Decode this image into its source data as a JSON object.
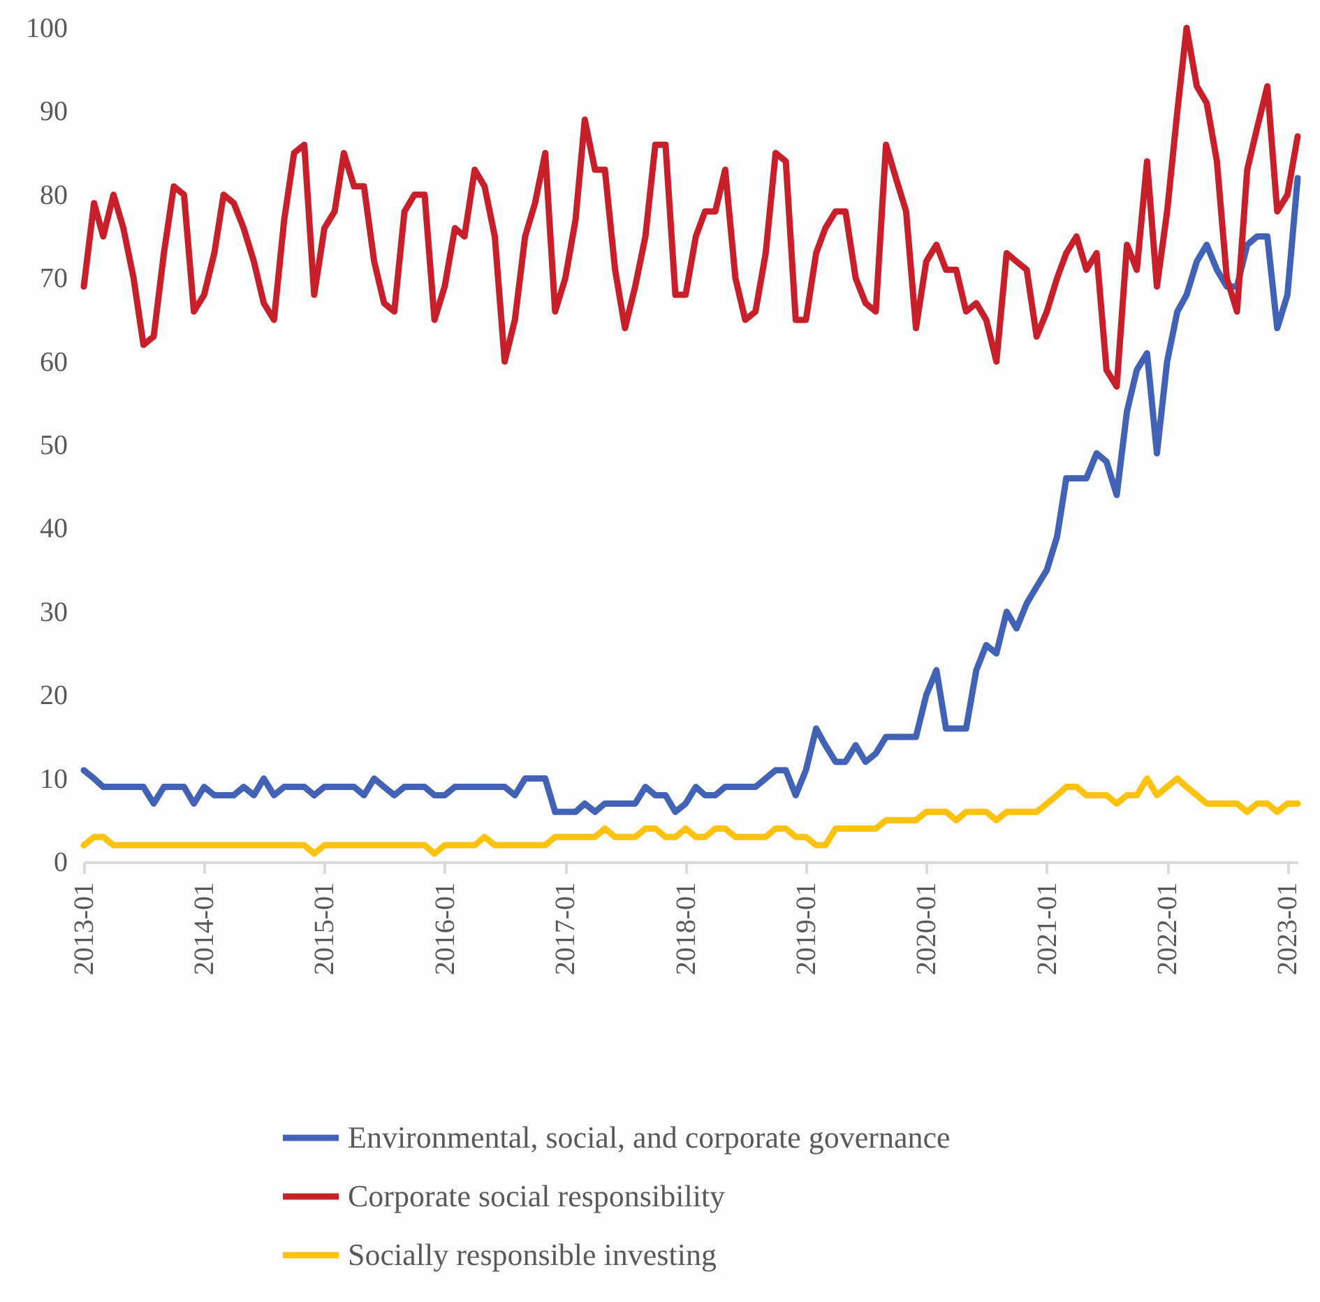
{
  "chart_data": {
    "type": "line",
    "legend": "bottom",
    "ylim": [
      0,
      100
    ],
    "yticks": [
      0,
      10,
      20,
      30,
      40,
      50,
      60,
      70,
      80,
      90,
      100
    ],
    "xlim": [
      "2013-01",
      "2023-02"
    ],
    "xticks": [
      "2013-01",
      "2014-01",
      "2015-01",
      "2016-01",
      "2017-01",
      "2018-01",
      "2019-01",
      "2020-01",
      "2021-01",
      "2022-01",
      "2023-01"
    ],
    "x": [
      "2013-01",
      "2013-02",
      "2013-03",
      "2013-04",
      "2013-05",
      "2013-06",
      "2013-07",
      "2013-08",
      "2013-09",
      "2013-10",
      "2013-11",
      "2013-12",
      "2014-01",
      "2014-02",
      "2014-03",
      "2014-04",
      "2014-05",
      "2014-06",
      "2014-07",
      "2014-08",
      "2014-09",
      "2014-10",
      "2014-11",
      "2014-12",
      "2015-01",
      "2015-02",
      "2015-03",
      "2015-04",
      "2015-05",
      "2015-06",
      "2015-07",
      "2015-08",
      "2015-09",
      "2015-10",
      "2015-11",
      "2015-12",
      "2016-01",
      "2016-02",
      "2016-03",
      "2016-04",
      "2016-05",
      "2016-06",
      "2016-07",
      "2016-08",
      "2016-09",
      "2016-10",
      "2016-11",
      "2016-12",
      "2017-01",
      "2017-02",
      "2017-03",
      "2017-04",
      "2017-05",
      "2017-06",
      "2017-07",
      "2017-08",
      "2017-09",
      "2017-10",
      "2017-11",
      "2017-12",
      "2018-01",
      "2018-02",
      "2018-03",
      "2018-04",
      "2018-05",
      "2018-06",
      "2018-07",
      "2018-08",
      "2018-09",
      "2018-10",
      "2018-11",
      "2018-12",
      "2019-01",
      "2019-02",
      "2019-03",
      "2019-04",
      "2019-05",
      "2019-06",
      "2019-07",
      "2019-08",
      "2019-09",
      "2019-10",
      "2019-11",
      "2019-12",
      "2020-01",
      "2020-02",
      "2020-03",
      "2020-04",
      "2020-05",
      "2020-06",
      "2020-07",
      "2020-08",
      "2020-09",
      "2020-10",
      "2020-11",
      "2020-12",
      "2021-01",
      "2021-02",
      "2021-03",
      "2021-04",
      "2021-05",
      "2021-06",
      "2021-07",
      "2021-08",
      "2021-09",
      "2021-10",
      "2021-11",
      "2021-12",
      "2022-01",
      "2022-02",
      "2022-03",
      "2022-04",
      "2022-05",
      "2022-06",
      "2022-07",
      "2022-08",
      "2022-09",
      "2022-10",
      "2022-11",
      "2022-12",
      "2023-01",
      "2023-02"
    ],
    "series": [
      {
        "name": "Environmental, social, and corporate governance",
        "color": "#4263b5",
        "values": [
          11,
          10,
          9,
          9,
          9,
          9,
          9,
          7,
          9,
          9,
          9,
          7,
          9,
          8,
          8,
          8,
          9,
          8,
          10,
          8,
          9,
          9,
          9,
          8,
          9,
          9,
          9,
          9,
          8,
          10,
          9,
          8,
          9,
          9,
          9,
          8,
          8,
          9,
          9,
          9,
          9,
          9,
          9,
          8,
          10,
          10,
          10,
          6,
          6,
          6,
          7,
          6,
          7,
          7,
          7,
          7,
          9,
          8,
          8,
          6,
          7,
          9,
          8,
          8,
          9,
          9,
          9,
          9,
          10,
          11,
          11,
          8,
          11,
          16,
          14,
          12,
          12,
          14,
          12,
          13,
          15,
          15,
          15,
          15,
          20,
          23,
          16,
          16,
          16,
          23,
          26,
          25,
          30,
          28,
          31,
          33,
          35,
          39,
          46,
          46,
          46,
          49,
          48,
          44,
          54,
          59,
          61,
          49,
          60,
          66,
          68,
          72,
          74,
          71,
          69,
          69,
          74,
          75,
          75,
          64,
          68,
          82
        ]
      },
      {
        "name": "Corporate social responsibility",
        "color": "#c8202a",
        "values": [
          69,
          79,
          75,
          80,
          76,
          70,
          62,
          63,
          73,
          81,
          80,
          66,
          68,
          73,
          80,
          79,
          76,
          72,
          67,
          65,
          77,
          85,
          86,
          68,
          76,
          78,
          85,
          81,
          81,
          72,
          67,
          66,
          78,
          80,
          80,
          65,
          69,
          76,
          75,
          83,
          81,
          75,
          60,
          65,
          75,
          79,
          85,
          66,
          70,
          77,
          89,
          83,
          83,
          71,
          64,
          69,
          75,
          86,
          86,
          68,
          68,
          75,
          78,
          78,
          83,
          70,
          65,
          66,
          73,
          85,
          84,
          65,
          65,
          73,
          76,
          78,
          78,
          70,
          67,
          66,
          86,
          82,
          78,
          64,
          72,
          74,
          71,
          71,
          66,
          67,
          65,
          60,
          73,
          72,
          71,
          63,
          66,
          70,
          73,
          75,
          71,
          73,
          59,
          57,
          74,
          71,
          84,
          69,
          78,
          90,
          100,
          93,
          91,
          84,
          70,
          66,
          83,
          88,
          93,
          78,
          80,
          87
        ]
      },
      {
        "name": "Socially responsible investing",
        "color": "#ffc20e",
        "values": [
          2,
          3,
          3,
          2,
          2,
          2,
          2,
          2,
          2,
          2,
          2,
          2,
          2,
          2,
          2,
          2,
          2,
          2,
          2,
          2,
          2,
          2,
          2,
          1,
          2,
          2,
          2,
          2,
          2,
          2,
          2,
          2,
          2,
          2,
          2,
          1,
          2,
          2,
          2,
          2,
          3,
          2,
          2,
          2,
          2,
          2,
          2,
          3,
          3,
          3,
          3,
          3,
          4,
          3,
          3,
          3,
          4,
          4,
          3,
          3,
          4,
          3,
          3,
          4,
          4,
          3,
          3,
          3,
          3,
          4,
          4,
          3,
          3,
          2,
          2,
          4,
          4,
          4,
          4,
          4,
          5,
          5,
          5,
          5,
          6,
          6,
          6,
          5,
          6,
          6,
          6,
          5,
          6,
          6,
          6,
          6,
          7,
          8,
          9,
          9,
          8,
          8,
          8,
          7,
          8,
          8,
          10,
          8,
          9,
          10,
          9,
          8,
          7,
          7,
          7,
          7,
          6,
          7,
          7,
          6,
          7,
          7
        ]
      }
    ]
  }
}
